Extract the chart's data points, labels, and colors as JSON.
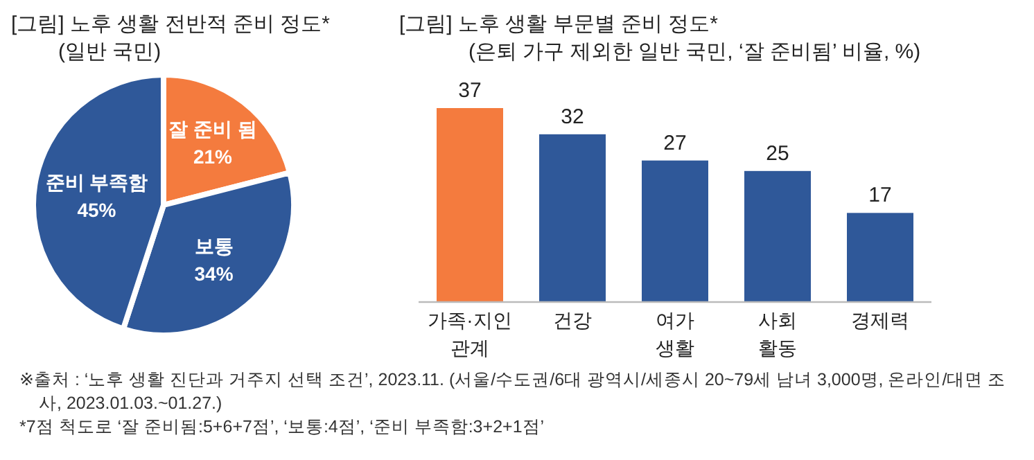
{
  "chart_data": [
    {
      "type": "pie",
      "title": "[그림] 노후 생활 전반적 준비 정도*",
      "subtitle": "(일반 국민)",
      "categories": [
        "잘 준비 됨",
        "보통",
        "준비 부족함"
      ],
      "values": [
        21,
        34,
        45
      ],
      "value_labels": [
        "21%",
        "34%",
        "45%"
      ],
      "colors": [
        "#f47b3e",
        "#2f5899",
        "#2f5899"
      ],
      "annotations": [
        "※출처 : ‘노후 생활 진단과 거주지 선택 조건’, 2023.11. (서울/수도권/6대 광역시/세종시 20~79세 남녀 3,000명, 온라인/대면 조사, 2023.01.03.~01.27.)",
        "*7점 척도로 ‘잘 준비됨:5+6+7점’, ‘보통:4점’, ‘준비 부족함:3+2+1점’"
      ]
    },
    {
      "type": "bar",
      "title": "[그림] 노후 생활 부문별 준비 정도*",
      "subtitle": "(은퇴 가구 제외한 일반 국민, ‘잘 준비됨’ 비율, %)",
      "categories": [
        "가족·지인 관계",
        "건강",
        "여가 생활",
        "사회 활동",
        "경제력"
      ],
      "values": [
        37,
        32,
        27,
        25,
        17
      ],
      "colors": [
        "#f47b3e",
        "#2f5899",
        "#2f5899",
        "#2f5899",
        "#2f5899"
      ],
      "data_labels": true
    }
  ]
}
